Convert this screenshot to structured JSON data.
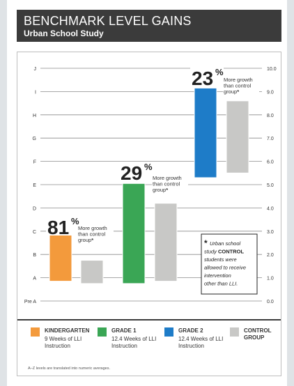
{
  "header": {
    "title": "BENCHMARK LEVEL GAINS",
    "subtitle": "Urban School Study"
  },
  "chart_data": {
    "type": "bar",
    "left_axis_ticks": [
      "Pre A",
      "A",
      "B",
      "C",
      "D",
      "E",
      "F",
      "G",
      "H",
      "I",
      "J"
    ],
    "right_axis_ticks": [
      "0.0",
      "1.0",
      "2.0",
      "3.0",
      "4.0",
      "5.0",
      "6.0",
      "7.0",
      "8.0",
      "9.0",
      "10.0"
    ],
    "ylim": [
      0,
      10
    ],
    "grid": true,
    "groups": [
      {
        "name": "KINDERGARTEN",
        "treatment": {
          "low": 0.85,
          "high": 3.0,
          "color": "#f39a3c"
        },
        "control": {
          "low": 0.75,
          "high": 1.75
        },
        "gain_value": "81",
        "gain_unit": "%",
        "gain_text": [
          "More growth",
          "than control",
          "group"
        ],
        "gain_star": "*"
      },
      {
        "name": "GRADE 1",
        "treatment": {
          "low": 0.75,
          "high": 5.05,
          "color": "#3aa655"
        },
        "control": {
          "low": 0.85,
          "high": 4.2
        },
        "gain_value": "29",
        "gain_unit": "%",
        "gain_text": [
          "More growth",
          "than control",
          "group"
        ],
        "gain_star": "*"
      },
      {
        "name": "GRADE 2",
        "treatment": {
          "low": 5.3,
          "high": 9.15,
          "color": "#1e7cc8"
        },
        "control": {
          "low": 5.5,
          "high": 8.6
        },
        "gain_value": "23",
        "gain_unit": "%",
        "gain_text": [
          "More growth",
          "than control",
          "group"
        ],
        "gain_star": "*"
      }
    ]
  },
  "note": {
    "star": "*",
    "lines": [
      {
        "parts": [
          {
            "t": "Urban school",
            "b": false
          }
        ]
      },
      {
        "parts": [
          {
            "t": "study ",
            "b": false
          },
          {
            "t": "CONTROL",
            "b": true
          }
        ]
      },
      {
        "parts": [
          {
            "t": "students were",
            "b": false
          }
        ]
      },
      {
        "parts": [
          {
            "t": "allowed to receive",
            "b": false
          }
        ]
      },
      {
        "parts": [
          {
            "t": "intervention",
            "b": false
          }
        ]
      },
      {
        "parts": [
          {
            "t": "other than ",
            "b": false
          },
          {
            "t": "LLI.",
            "b": false
          }
        ]
      }
    ]
  },
  "legend": [
    {
      "title": "KINDERGARTEN",
      "desc": "9 Weeks of LLI Instruction",
      "color": "#f39a3c"
    },
    {
      "title": "GRADE 1",
      "desc": "12.4 Weeks of LLI Instruction",
      "color": "#3aa655"
    },
    {
      "title": "GRADE 2",
      "desc": "12.4 Weeks of LLI Instruction",
      "color": "#1e7cc8"
    },
    {
      "title": "CONTROL GROUP",
      "desc": "",
      "color": "#c8c8c6"
    }
  ],
  "footnote": "A–Z levels are translated into numeric averages."
}
